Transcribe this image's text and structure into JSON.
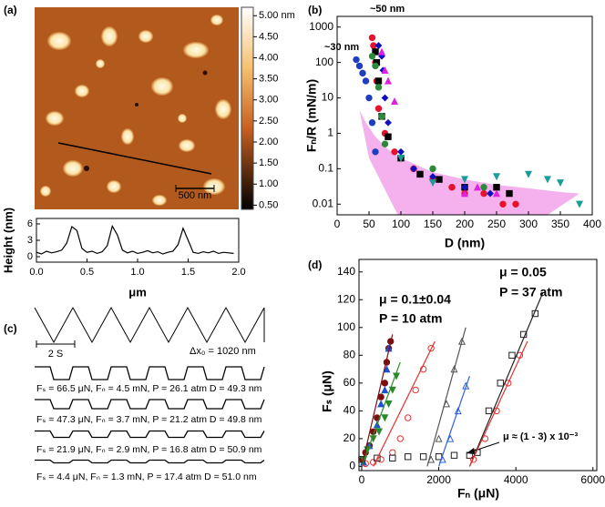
{
  "panel_labels": [
    "(a)",
    "(b)",
    "(c)",
    "(d)"
  ],
  "afm": {
    "scale_bar": "500 nm",
    "colorbar": {
      "lim": [
        0.4,
        5.2
      ],
      "ticks": [
        {
          "value": 5,
          "label": "5.00 nm"
        },
        {
          "value": 4.5,
          "label": "4.50"
        },
        {
          "value": 4,
          "label": "4.00"
        },
        {
          "value": 3.5,
          "label": "3.50"
        },
        {
          "value": 3,
          "label": "3.00"
        },
        {
          "value": 2.5,
          "label": "2.50"
        },
        {
          "value": 2,
          "label": "2.00"
        },
        {
          "value": 1.5,
          "label": "1.50"
        },
        {
          "value": 1,
          "label": "1.00"
        },
        {
          "value": 0.5,
          "label": "0.50"
        }
      ]
    }
  },
  "friction": {
    "period_label": "2 S",
    "amplitude_label": "Δx₀ = 1020 nm",
    "traces": [
      "Fₛ = 66.5 μN, Fₙ = 4.5 mN, P = 26.1 atm D = 49.3 nm",
      "Fₛ = 47.3 μN, Fₙ = 3.7 mN, P = 21.2 atm D = 49.8 nm",
      "Fₛ = 21.9 μN, Fₙ = 2.9 mN, P = 16.8 atm D = 50.9 nm",
      "Fₛ = 4.4 μN, Fₙ = 1.3 mN, P = 17.4 atm D = 51.0 nm"
    ]
  },
  "chart_data": [
    {
      "type": "line",
      "xlabel": "μm",
      "ylabel": "Height (nm)",
      "x": [
        0,
        0.05,
        0.1,
        0.15,
        0.2,
        0.25,
        0.3,
        0.35,
        0.4,
        0.45,
        0.5,
        0.55,
        0.6,
        0.65,
        0.7,
        0.75,
        0.8,
        0.85,
        0.9,
        0.95,
        1.0,
        1.05,
        1.1,
        1.15,
        1.2,
        1.25,
        1.3,
        1.35,
        1.4,
        1.45,
        1.5,
        1.55,
        1.6,
        1.65,
        1.7,
        1.75,
        1.8,
        1.85,
        1.9,
        1.95
      ],
      "series": [
        {
          "color": "#000000",
          "values": [
            0.8,
            0.5,
            1.0,
            0.7,
            0.9,
            1.2,
            2.5,
            5.5,
            4.8,
            1.5,
            0.8,
            1.0,
            0.6,
            0.9,
            2.0,
            5.6,
            4.0,
            1.2,
            0.7,
            1.0,
            0.6,
            0.8,
            1.1,
            0.7,
            0.9,
            0.5,
            0.8,
            1.0,
            2.2,
            5.2,
            3.0,
            0.8,
            0.6,
            0.9,
            0.7,
            1.0,
            0.6,
            0.8,
            0.7,
            0.6
          ]
        }
      ],
      "xlim": [
        0,
        2
      ],
      "xticks": [
        {
          "value": 0,
          "label": "0.0"
        },
        {
          "value": 0.5,
          "label": "0.5"
        },
        {
          "value": 1,
          "label": "1.0"
        },
        {
          "value": 1.5,
          "label": "1.5"
        },
        {
          "value": 2,
          "label": "2.0"
        }
      ],
      "ylim": [
        -1,
        7
      ],
      "yticks": [
        0,
        3,
        6
      ]
    },
    {
      "type": "scatter",
      "xlabel": "D (nm)",
      "ylabel": "Fₙ/R (mN/m)",
      "ylog": true,
      "annotations": [
        "~50 nm",
        "~30 nm"
      ],
      "band": {
        "color": "#f5b0ee",
        "x": [
          35,
          45,
          60,
          80,
          100,
          150,
          200,
          250,
          300,
          350,
          380,
          330,
          95,
          50
        ],
        "values": [
          4.5,
          2,
          0.8,
          0.35,
          0.2,
          0.08,
          0.05,
          0.035,
          0.028,
          0.022,
          0.02,
          0.005,
          0.005,
          0.2
        ]
      },
      "series": [
        {
          "color": "#1f3fbf",
          "marker": "circle",
          "filled": true,
          "x": [
            30,
            35,
            40,
            45,
            50,
            55,
            60
          ],
          "values": [
            120,
            80,
            50,
            30,
            10,
            2,
            0.3
          ]
        },
        {
          "color": "#e8102a",
          "marker": "circle",
          "filled": true,
          "x": [
            55,
            57,
            60,
            62,
            65,
            75,
            90,
            120,
            150,
            180,
            200,
            230,
            260,
            280
          ],
          "values": [
            500,
            300,
            100,
            30,
            5,
            1,
            0.3,
            0.1,
            0.05,
            0.03,
            0.02,
            0.02,
            0.01,
            0.01
          ]
        },
        {
          "color": "#000000",
          "marker": "square",
          "filled": true,
          "x": [
            60,
            62,
            65,
            70,
            80,
            100,
            130,
            160,
            200,
            250,
            270
          ],
          "values": [
            200,
            100,
            30,
            3,
            0.8,
            0.2,
            0.07,
            0.05,
            0.03,
            0.03,
            0.02
          ]
        },
        {
          "color": "#1010c0",
          "marker": "diamond",
          "filled": true,
          "x": [
            65,
            70,
            72,
            75,
            80,
            100,
            120,
            150,
            200,
            240
          ],
          "values": [
            300,
            150,
            60,
            10,
            2,
            0.3,
            0.1,
            0.06,
            0.03,
            0.02
          ]
        },
        {
          "color": "#e020e0",
          "marker": "triangle",
          "filled": true,
          "x": [
            70,
            75,
            80,
            90,
            200,
            220,
            250
          ],
          "values": [
            200,
            60,
            30,
            8,
            0.02,
            0.03,
            0.02
          ]
        },
        {
          "color": "#1a9c9c",
          "marker": "triangle-down",
          "filled": true,
          "x": [
            100,
            150,
            200,
            250,
            300,
            330,
            350,
            380
          ],
          "values": [
            0.2,
            0.04,
            0.05,
            0.06,
            0.07,
            0.05,
            0.04,
            0.01
          ]
        },
        {
          "color": "#2a8a3a",
          "marker": "circle",
          "filled": true,
          "x": [
            55,
            60,
            65,
            70,
            75,
            150,
            230
          ],
          "values": [
            150,
            80,
            20,
            3,
            0.5,
            0.1,
            0.03
          ]
        }
      ],
      "xlim": [
        0,
        400
      ],
      "xticks": [
        0,
        50,
        100,
        150,
        200,
        250,
        300,
        350,
        400
      ],
      "ylim": [
        0.005,
        2000
      ],
      "yticks": [
        0.01,
        0.1,
        1,
        10,
        100,
        1000
      ]
    },
    {
      "type": "scatter",
      "xlabel": "Fₙ (μN)",
      "ylabel": "Fₛ (μN)",
      "annotations": [
        "μ = 0.05",
        "P = 37 atm",
        "μ = 0.1±0.04",
        "P = 10 atm",
        "μ ≈ (1 - 3) x 10⁻³"
      ],
      "series": [
        {
          "color": "#7a1010",
          "marker": "circle",
          "filled": true,
          "x": [
            20,
            100,
            200,
            300,
            400,
            500,
            600,
            650,
            700,
            750
          ],
          "values": [
            5,
            10,
            15,
            25,
            35,
            50,
            60,
            75,
            85,
            90
          ]
        },
        {
          "color": "#2050d0",
          "marker": "triangle",
          "filled": true,
          "x": [
            50,
            200,
            400,
            500,
            600,
            650,
            700
          ],
          "values": [
            3,
            15,
            30,
            45,
            55,
            70,
            85
          ]
        },
        {
          "color": "#2a8a2a",
          "marker": "triangle-down",
          "filled": true,
          "x": [
            50,
            150,
            300,
            450,
            600,
            700,
            800,
            900
          ],
          "values": [
            5,
            12,
            20,
            25,
            35,
            45,
            55,
            65
          ]
        },
        {
          "color": "#e83030",
          "marker": "circle",
          "filled": false,
          "x": [
            100,
            300,
            500,
            800,
            1000,
            1200,
            1400,
            1600,
            1800
          ],
          "values": [
            2,
            3,
            5,
            10,
            20,
            35,
            55,
            70,
            85
          ]
        },
        {
          "color": "#555555",
          "marker": "triangle",
          "filled": false,
          "x": [
            1800,
            2000,
            2200,
            2400,
            2600
          ],
          "values": [
            5,
            20,
            45,
            70,
            90
          ]
        },
        {
          "color": "#3060e0",
          "marker": "triangle",
          "filled": false,
          "x": [
            2100,
            2300,
            2500,
            2700
          ],
          "values": [
            5,
            20,
            40,
            58
          ]
        },
        {
          "color": "#222222",
          "marker": "square",
          "filled": false,
          "x": [
            0,
            400,
            800,
            1200,
            1600,
            2000,
            2400,
            2800,
            3000,
            3300,
            3600,
            3900,
            4200,
            4500
          ],
          "values": [
            5,
            6,
            6,
            7,
            7,
            7,
            8,
            8,
            10,
            40,
            60,
            80,
            95,
            110
          ]
        },
        {
          "color": "#e83030",
          "marker": "circle",
          "filled": false,
          "x": [
            2900,
            3200,
            3500,
            3800,
            4100
          ],
          "values": [
            5,
            20,
            40,
            60,
            80
          ]
        },
        {
          "color": "#7a1010",
          "x": [
            0,
            800
          ],
          "values": [
            0,
            95
          ]
        },
        {
          "color": "#2a8a2a",
          "x": [
            0,
            1000
          ],
          "values": [
            0,
            75
          ]
        },
        {
          "color": "#e83030",
          "x": [
            300,
            1900
          ],
          "values": [
            0,
            90
          ]
        },
        {
          "color": "#555555",
          "x": [
            1700,
            2700
          ],
          "values": [
            0,
            100
          ]
        },
        {
          "color": "#3060e0",
          "x": [
            2000,
            2800
          ],
          "values": [
            0,
            65
          ]
        },
        {
          "color": "#222222",
          "x": [
            2800,
            4700
          ],
          "values": [
            0,
            125
          ]
        },
        {
          "color": "#e83030",
          "x": [
            2800,
            4300
          ],
          "values": [
            0,
            90
          ]
        }
      ],
      "xlim": [
        -70,
        6100
      ],
      "xticks": [
        0,
        2000,
        4000,
        6000
      ],
      "ylim": [
        -3,
        149
      ],
      "yticks": [
        0,
        20,
        40,
        60,
        80,
        100,
        120,
        140
      ]
    }
  ]
}
